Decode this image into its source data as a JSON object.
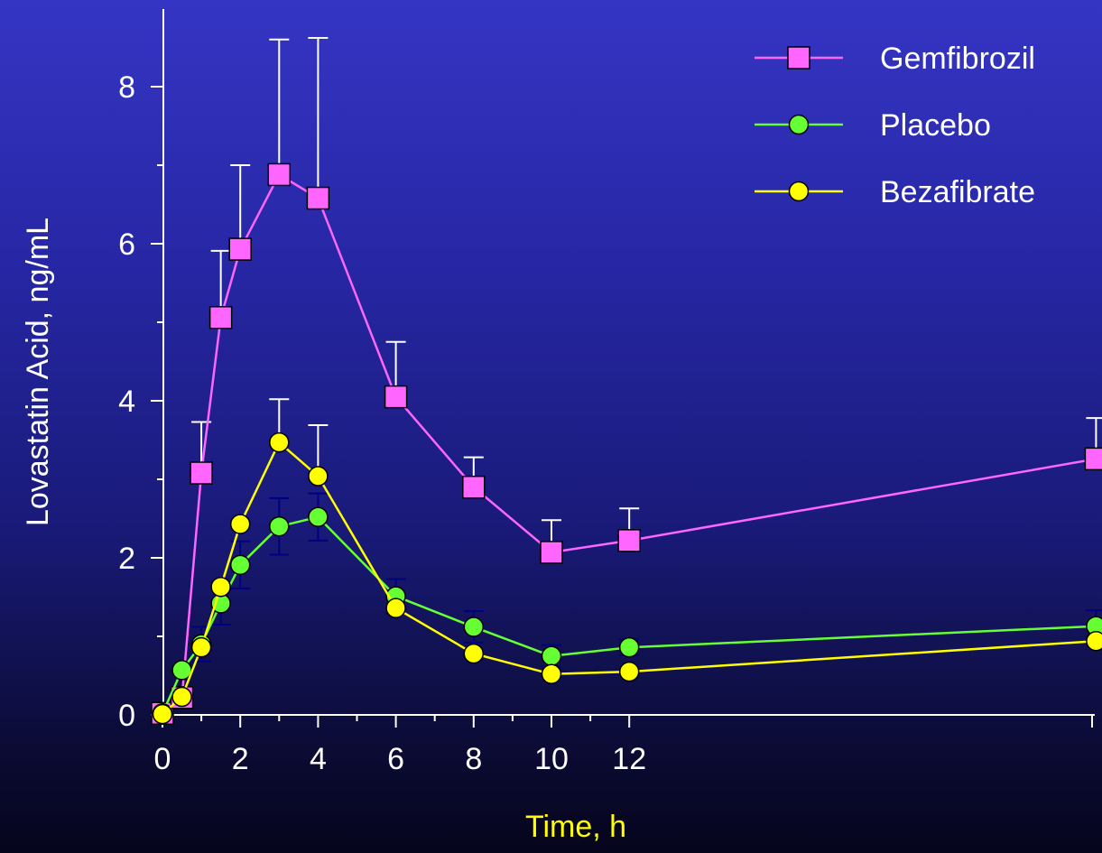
{
  "chart_data": {
    "type": "line",
    "xlabel": "Time, h",
    "ylabel": "Lovastatin Acid, ng/mL",
    "xlim": [
      0,
      24
    ],
    "ylim": [
      0,
      8.8
    ],
    "x_tick_labels": [
      "0",
      "2",
      "4",
      "6",
      "8",
      "10",
      "12"
    ],
    "y_tick_labels": [
      "0",
      "2",
      "4",
      "6",
      "8"
    ],
    "colors": {
      "xlabel": "#ffff00",
      "ylabel": "#ffffff",
      "axis": "#ffffff"
    },
    "legend": {
      "placement": "top-right"
    },
    "series": [
      {
        "name": "Gemfibrozil",
        "color": "#ff66ff",
        "marker": "square",
        "error_bar_color": "#ffffff",
        "x": [
          0,
          0.5,
          1,
          1.5,
          2,
          3,
          4,
          6,
          8,
          10,
          12,
          24
        ],
        "y": [
          0.02,
          0.22,
          3.08,
          5.06,
          5.93,
          6.88,
          6.58,
          4.05,
          2.9,
          2.07,
          2.22,
          3.26
        ],
        "err": [
          0,
          0,
          0.65,
          0.85,
          1.07,
          1.72,
          2.04,
          0.7,
          0.38,
          0.41,
          0.41,
          0.52
        ]
      },
      {
        "name": "Placebo",
        "color": "#66ff33",
        "marker": "circle",
        "error_bar_color": "#000080",
        "x": [
          0,
          0.5,
          1,
          1.5,
          2,
          3,
          4,
          6,
          8,
          10,
          12,
          24
        ],
        "y": [
          0.02,
          0.57,
          0.9,
          1.42,
          1.91,
          2.4,
          2.52,
          1.51,
          1.12,
          0.75,
          0.86,
          1.13
        ],
        "err": [
          0,
          0,
          0.22,
          0.27,
          0.3,
          0.36,
          0.3,
          0.22,
          0.2,
          0.14,
          0.1,
          0.2
        ]
      },
      {
        "name": "Bezafibrate",
        "color": "#ffff00",
        "marker": "circle",
        "error_bar_color": "#ffffff",
        "x": [
          0,
          0.5,
          1,
          1.5,
          2,
          3,
          4,
          6,
          8,
          10,
          12,
          24
        ],
        "y": [
          0.01,
          0.23,
          0.86,
          1.63,
          2.43,
          3.47,
          3.04,
          1.36,
          0.78,
          0.52,
          0.55,
          0.94
        ],
        "err": [
          0,
          0,
          0,
          0,
          0,
          0.55,
          0.65,
          0,
          0,
          0,
          0,
          0
        ]
      }
    ]
  }
}
